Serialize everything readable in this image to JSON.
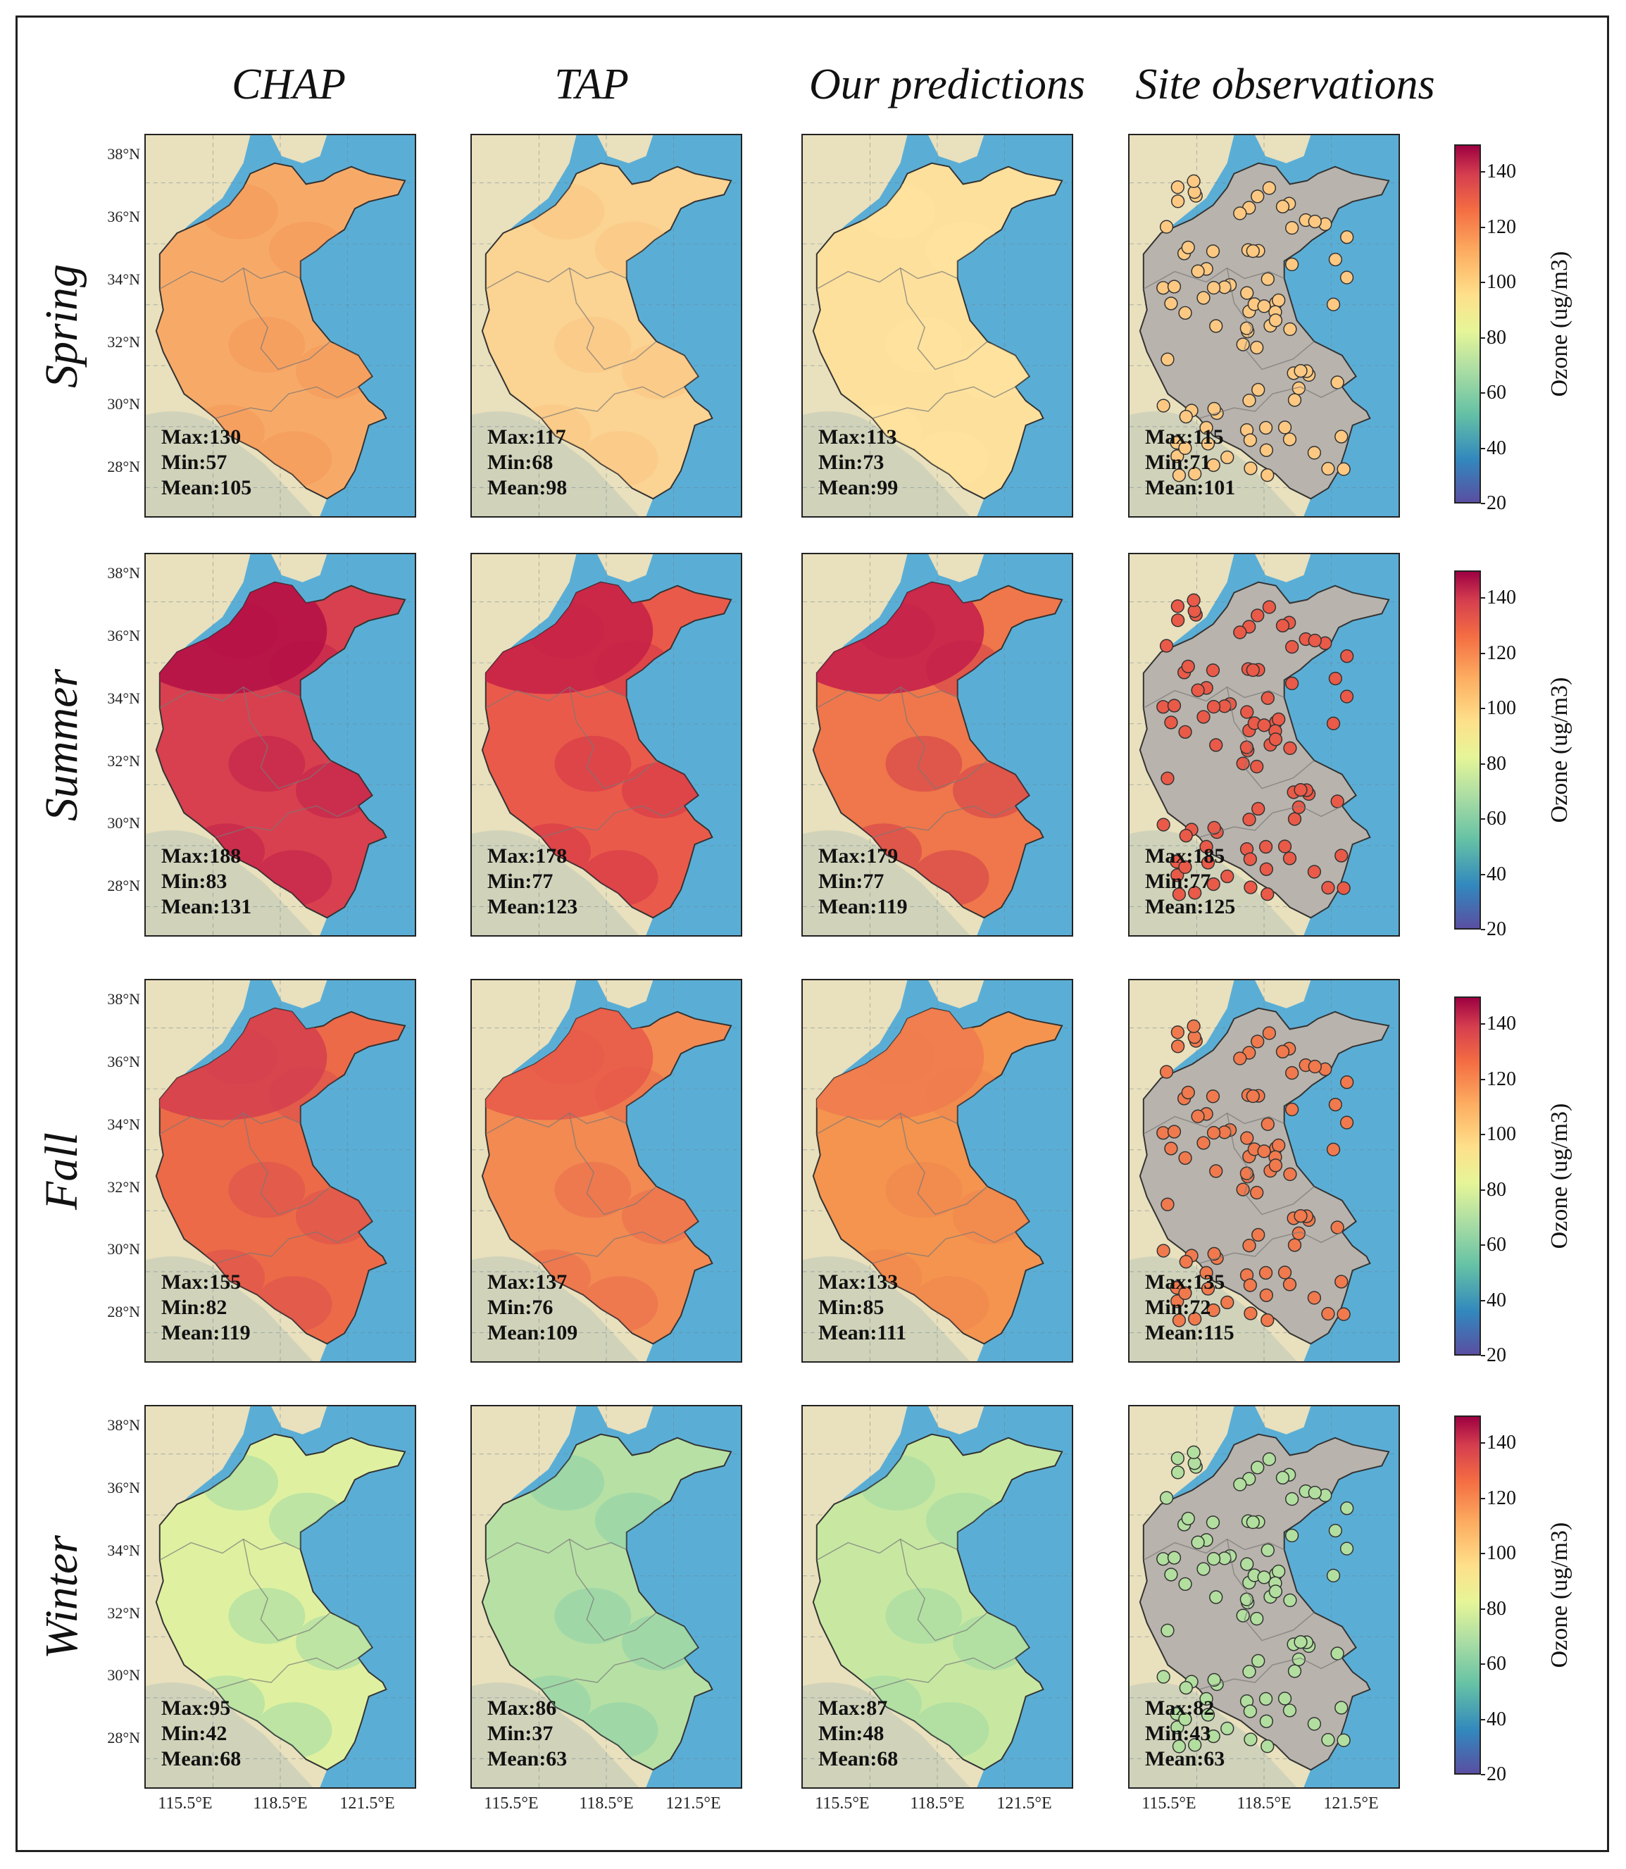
{
  "figure": {
    "columns": [
      "CHAP",
      "TAP",
      "Our predictions",
      "Site observations"
    ],
    "seasons": [
      "Spring",
      "Summer",
      "Fall",
      "Winter"
    ],
    "lat_labels": [
      "38°N",
      "36°N",
      "34°N",
      "32°N",
      "30°N",
      "28°N"
    ],
    "lon_labels": [
      "115.5°E",
      "118.5°E",
      "121.5°E"
    ],
    "colorbar": {
      "label": "Ozone (ug/m3)",
      "ticks": [
        "140",
        "120",
        "100",
        "80",
        "60",
        "40",
        "20"
      ],
      "range": [
        20,
        150
      ]
    },
    "panels": [
      [
        {
          "max": "Max:130",
          "min": "Min:57",
          "mean": "Mean:105"
        },
        {
          "max": "Max:117",
          "min": "Min:68",
          "mean": "Mean:98"
        },
        {
          "max": "Max:113",
          "min": "Min:73",
          "mean": "Mean:99"
        },
        {
          "max": "Max:115",
          "min": "Min:71",
          "mean": "Mean:101"
        }
      ],
      [
        {
          "max": "Max:188",
          "min": "Min:83",
          "mean": "Mean:131"
        },
        {
          "max": "Max:178",
          "min": "Min:77",
          "mean": "Mean:123"
        },
        {
          "max": "Max:179",
          "min": "Min:77",
          "mean": "Mean:119"
        },
        {
          "max": "Max:185",
          "min": "Min:77",
          "mean": "Mean:125"
        }
      ],
      [
        {
          "max": "Max:155",
          "min": "Min:82",
          "mean": "Mean:119"
        },
        {
          "max": "Max:137",
          "min": "Min:76",
          "mean": "Mean:109"
        },
        {
          "max": "Max:133",
          "min": "Min:85",
          "mean": "Mean:111"
        },
        {
          "max": "Max:135",
          "min": "Min:72",
          "mean": "Mean:115"
        }
      ],
      [
        {
          "max": "Max:95",
          "min": "Min:42",
          "mean": "Mean:68"
        },
        {
          "max": "Max:86",
          "min": "Min:37",
          "mean": "Mean:63"
        },
        {
          "max": "Max:87",
          "min": "Min:48",
          "mean": "Mean:68"
        },
        {
          "max": "Max:82",
          "min": "Min:43",
          "mean": "Mean:63"
        }
      ]
    ],
    "fill_colors": [
      [
        "#f7aa68",
        "#fbd392",
        "#fde09c",
        "#b8b3ac"
      ],
      [
        "#d8404f",
        "#ea5a4a",
        "#ef774b",
        "#b8b3ac"
      ],
      [
        "#ec6a48",
        "#f28a52",
        "#f4944f",
        "#b8b3ac"
      ],
      [
        "#dff1a0",
        "#b7e0a5",
        "#c8e8a2",
        "#b8b3ac"
      ]
    ],
    "accent_colors": [
      [
        "#f48f52",
        "#fdbd79",
        "#fee6a0",
        "#fdc982"
      ],
      [
        "#b40f47",
        "#c52048",
        "#c41c4b",
        "#ea5a48"
      ],
      [
        "#d53e4f",
        "#e8584a",
        "#ef7a4d",
        "#f07a4d"
      ],
      [
        "#7ecba7",
        "#74c8a8",
        "#8ad1a6",
        "#b2df9f"
      ]
    ],
    "land_color": "#e9e0bd",
    "sea_color": "#5aaed6"
  }
}
